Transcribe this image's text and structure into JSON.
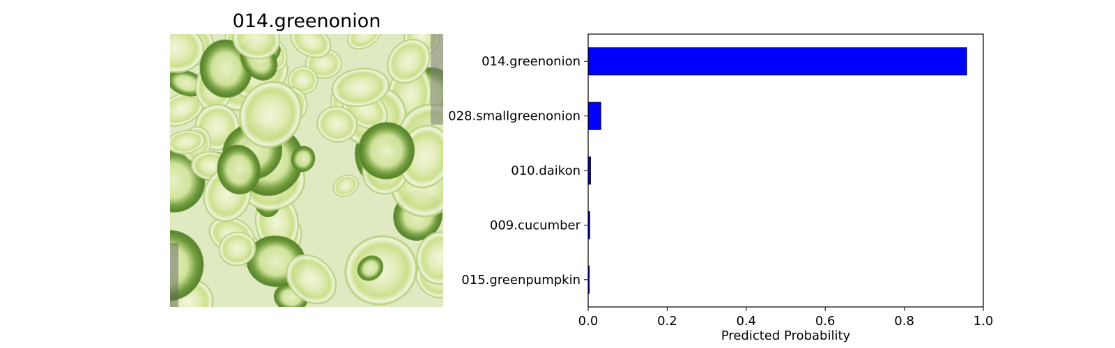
{
  "image_panel": {
    "title": "014.greenonion",
    "photo_description_icon": "sliced-green-onion-photo"
  },
  "chart_data": {
    "type": "bar",
    "orientation": "horizontal",
    "categories": [
      "014.greenonion",
      "028.smallgreenonion",
      "010.daikon",
      "009.cucumber",
      "015.greenpumpkin"
    ],
    "values": [
      0.958,
      0.032,
      0.006,
      0.004,
      0.002
    ],
    "xlabel": "Predicted Probability",
    "ylabel": "",
    "xlim": [
      0.0,
      1.0
    ],
    "xticks": [
      "0.0",
      "0.2",
      "0.4",
      "0.6",
      "0.8",
      "1.0"
    ],
    "bar_color": "#0000ff",
    "grid": false
  }
}
